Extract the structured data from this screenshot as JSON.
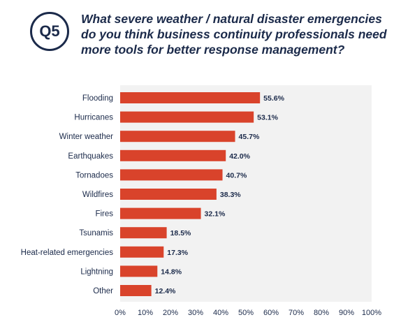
{
  "header": {
    "badge": "Q5",
    "question": "What severe weather / natural disaster emergencies do you think business continuity professionals need more tools for better response management?"
  },
  "colors": {
    "bar": "#d9432b",
    "plot_bg": "#f2f2f2",
    "text": "#1b2a4a"
  },
  "chart_data": {
    "type": "bar",
    "orientation": "horizontal",
    "categories": [
      "Flooding",
      "Hurricanes",
      "Winter weather",
      "Earthquakes",
      "Tornadoes",
      "Wildfires",
      "Fires",
      "Tsunamis",
      "Heat-related emergencies",
      "Lightning",
      "Other"
    ],
    "values": [
      55.6,
      53.1,
      45.7,
      42.0,
      40.7,
      38.3,
      32.1,
      18.5,
      17.3,
      14.8,
      12.4
    ],
    "value_labels": [
      "55.6%",
      "53.1%",
      "45.7%",
      "42.0%",
      "40.7%",
      "38.3%",
      "32.1%",
      "18.5%",
      "17.3%",
      "14.8%",
      "12.4%"
    ],
    "xlim": [
      0,
      100
    ],
    "xticks": [
      0,
      10,
      20,
      30,
      40,
      50,
      60,
      70,
      80,
      90,
      100
    ],
    "xtick_labels": [
      "0%",
      "10%",
      "20%",
      "30%",
      "40%",
      "50%",
      "60%",
      "70%",
      "80%",
      "90%",
      "100%"
    ],
    "grid": false
  }
}
